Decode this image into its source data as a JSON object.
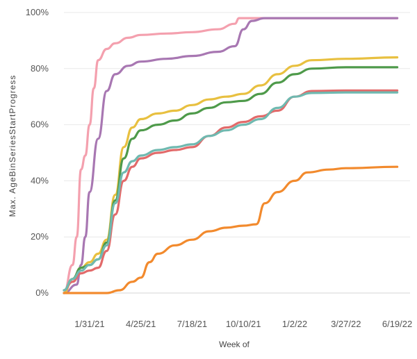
{
  "chart_data": {
    "type": "line",
    "xlabel": "Week of",
    "ylabel": "Max. AgeBinSeriesStartProgress",
    "x_ticks": [
      "1/31/21",
      "4/25/21",
      "7/18/21",
      "10/10/21",
      "1/2/22",
      "3/27/22",
      "6/19/22"
    ],
    "y_ticks": [
      "0%",
      "20%",
      "40%",
      "60%",
      "80%",
      "100%"
    ],
    "ylim": [
      0,
      100
    ],
    "grid": true,
    "legend": "none",
    "series": [
      {
        "color": "#f4a0ae",
        "points": [
          [
            "12/20/20",
            0
          ],
          [
            "1/3/21",
            10
          ],
          [
            "1/10/21",
            20
          ],
          [
            "1/17/21",
            44
          ],
          [
            "1/24/21",
            49
          ],
          [
            "1/31/21",
            60
          ],
          [
            "2/7/21",
            73
          ],
          [
            "2/14/21",
            83
          ],
          [
            "2/28/21",
            87
          ],
          [
            "3/14/21",
            89
          ],
          [
            "4/4/21",
            91
          ],
          [
            "4/25/21",
            92
          ],
          [
            "6/6/21",
            92.5
          ],
          [
            "7/18/21",
            93
          ],
          [
            "8/29/21",
            94
          ],
          [
            "9/26/21",
            96
          ],
          [
            "10/3/21",
            98
          ],
          [
            "11/14/21",
            98
          ],
          [
            "6/19/22",
            98
          ]
        ]
      },
      {
        "color": "#a877b2",
        "points": [
          [
            "12/20/20",
            0
          ],
          [
            "1/10/21",
            3
          ],
          [
            "1/17/21",
            10
          ],
          [
            "1/24/21",
            20
          ],
          [
            "1/31/21",
            36
          ],
          [
            "2/14/21",
            55
          ],
          [
            "2/28/21",
            72
          ],
          [
            "3/14/21",
            78
          ],
          [
            "4/4/21",
            81
          ],
          [
            "4/25/21",
            82.5
          ],
          [
            "6/6/21",
            83.5
          ],
          [
            "7/18/21",
            84.5
          ],
          [
            "8/29/21",
            86
          ],
          [
            "9/26/21",
            88
          ],
          [
            "10/10/21",
            94
          ],
          [
            "10/24/21",
            97
          ],
          [
            "11/14/21",
            98
          ],
          [
            "6/19/22",
            98
          ]
        ]
      },
      {
        "color": "#e8c040",
        "points": [
          [
            "12/20/20",
            0
          ],
          [
            "1/3/21",
            5
          ],
          [
            "1/17/21",
            9
          ],
          [
            "1/31/21",
            11
          ],
          [
            "2/14/21",
            14
          ],
          [
            "2/28/21",
            19
          ],
          [
            "3/14/21",
            35
          ],
          [
            "3/28/21",
            52
          ],
          [
            "4/11/21",
            59
          ],
          [
            "4/25/21",
            62
          ],
          [
            "5/23/21",
            64
          ],
          [
            "6/20/21",
            65
          ],
          [
            "7/18/21",
            67
          ],
          [
            "8/15/21",
            69
          ],
          [
            "9/12/21",
            70
          ],
          [
            "10/10/21",
            71
          ],
          [
            "11/7/21",
            74
          ],
          [
            "12/5/21",
            78
          ],
          [
            "1/2/22",
            81
          ],
          [
            "1/30/22",
            83
          ],
          [
            "3/27/22",
            83.5
          ],
          [
            "6/19/22",
            84
          ]
        ]
      },
      {
        "color": "#4e9a4a",
        "points": [
          [
            "12/20/20",
            1
          ],
          [
            "1/3/21",
            5
          ],
          [
            "1/17/21",
            9
          ],
          [
            "1/31/21",
            10
          ],
          [
            "2/14/21",
            12
          ],
          [
            "2/28/21",
            18
          ],
          [
            "3/14/21",
            33
          ],
          [
            "3/28/21",
            48
          ],
          [
            "4/11/21",
            55
          ],
          [
            "4/25/21",
            58
          ],
          [
            "5/23/21",
            60
          ],
          [
            "6/20/21",
            61.5
          ],
          [
            "7/18/21",
            64
          ],
          [
            "8/15/21",
            66
          ],
          [
            "9/12/21",
            68
          ],
          [
            "10/10/21",
            68.5
          ],
          [
            "11/7/21",
            71
          ],
          [
            "12/5/21",
            75
          ],
          [
            "1/2/22",
            78
          ],
          [
            "1/30/22",
            80
          ],
          [
            "3/27/22",
            80.5
          ],
          [
            "6/19/22",
            80.5
          ]
        ]
      },
      {
        "color": "#e26a6a",
        "points": [
          [
            "12/20/20",
            1
          ],
          [
            "1/3/21",
            4
          ],
          [
            "1/17/21",
            7
          ],
          [
            "1/31/21",
            8
          ],
          [
            "2/14/21",
            9
          ],
          [
            "2/28/21",
            15
          ],
          [
            "3/14/21",
            28
          ],
          [
            "3/28/21",
            40
          ],
          [
            "4/11/21",
            45
          ],
          [
            "4/25/21",
            48
          ],
          [
            "5/23/21",
            50
          ],
          [
            "6/20/21",
            51
          ],
          [
            "7/18/21",
            52
          ],
          [
            "8/15/21",
            56
          ],
          [
            "9/12/21",
            59
          ],
          [
            "10/10/21",
            61
          ],
          [
            "11/7/21",
            63
          ],
          [
            "12/5/21",
            65
          ],
          [
            "1/2/22",
            70
          ],
          [
            "1/30/22",
            72
          ],
          [
            "3/27/22",
            72.2
          ],
          [
            "6/19/22",
            72.2
          ]
        ]
      },
      {
        "color": "#6fb9b0",
        "points": [
          [
            "12/20/20",
            1
          ],
          [
            "1/3/21",
            5
          ],
          [
            "1/17/21",
            8
          ],
          [
            "1/31/21",
            10
          ],
          [
            "2/14/21",
            12
          ],
          [
            "2/28/21",
            17
          ],
          [
            "3/14/21",
            32
          ],
          [
            "3/28/21",
            43
          ],
          [
            "4/11/21",
            47
          ],
          [
            "4/25/21",
            49
          ],
          [
            "5/23/21",
            51
          ],
          [
            "6/20/21",
            52
          ],
          [
            "7/18/21",
            53
          ],
          [
            "8/15/21",
            56
          ],
          [
            "9/12/21",
            58
          ],
          [
            "10/10/21",
            60
          ],
          [
            "11/7/21",
            62
          ],
          [
            "12/5/21",
            66
          ],
          [
            "1/2/22",
            70
          ],
          [
            "1/30/22",
            71.3
          ],
          [
            "3/27/22",
            71.5
          ],
          [
            "6/19/22",
            71.5
          ]
        ]
      },
      {
        "color": "#f28a2d",
        "points": [
          [
            "12/20/20",
            0
          ],
          [
            "2/28/21",
            0
          ],
          [
            "3/21/21",
            1
          ],
          [
            "4/11/21",
            4
          ],
          [
            "4/25/21",
            5.5
          ],
          [
            "5/9/21",
            11
          ],
          [
            "5/23/21",
            14
          ],
          [
            "6/20/21",
            17
          ],
          [
            "7/18/21",
            19
          ],
          [
            "8/15/21",
            22
          ],
          [
            "9/12/21",
            23.3
          ],
          [
            "10/10/21",
            24
          ],
          [
            "10/31/21",
            24.5
          ],
          [
            "11/14/21",
            32
          ],
          [
            "12/5/21",
            36
          ],
          [
            "1/2/22",
            40
          ],
          [
            "1/23/22",
            43
          ],
          [
            "2/27/22",
            44
          ],
          [
            "3/27/22",
            44.5
          ],
          [
            "6/19/22",
            45
          ]
        ]
      }
    ]
  }
}
